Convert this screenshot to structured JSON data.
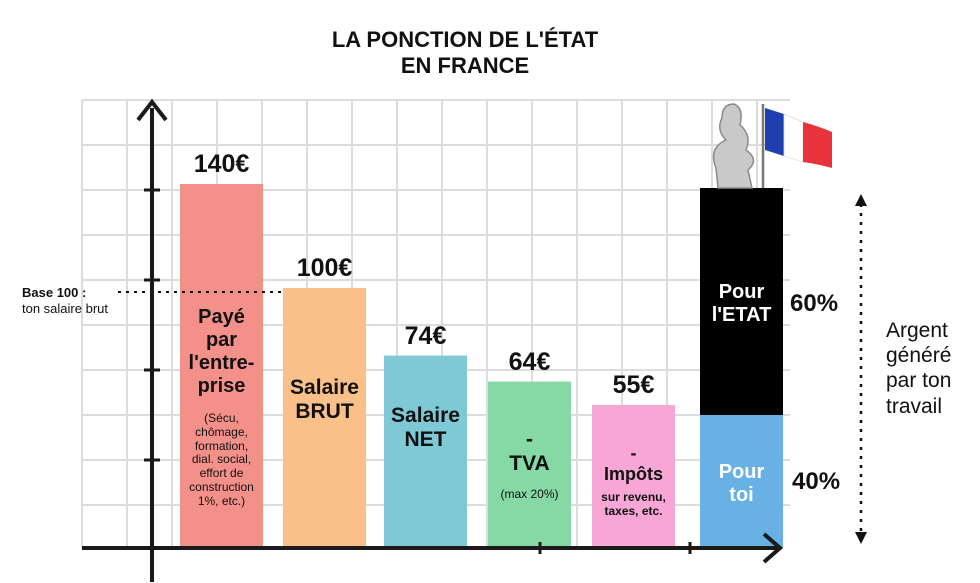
{
  "title_line1": "LA PONCTION DE L'ÉTAT",
  "title_line2": "EN FRANCE",
  "base_label_1": "Base 100 :",
  "base_label_2": "ton salaire brut",
  "bars": [
    {
      "value_label": "140€",
      "main_label": [
        "Payé",
        "par",
        "l'entre-",
        "prise"
      ],
      "sub_label": [
        "(Sécu,",
        "chômage,",
        "formation,",
        "dial. social,",
        "effort de",
        "construction",
        "1%, etc.)"
      ]
    },
    {
      "value_label": "100€",
      "main_label": [
        "Salaire",
        "BRUT"
      ],
      "sub_label": []
    },
    {
      "value_label": "74€",
      "main_label": [
        "Salaire",
        "NET"
      ],
      "sub_label": []
    },
    {
      "value_label": "64€",
      "main_label": [
        "-",
        "TVA"
      ],
      "sub_label": [
        "(max 20%)"
      ]
    },
    {
      "value_label": "55€",
      "main_label": [
        "-",
        "Impôts"
      ],
      "sub_label": [
        "sur revenu,",
        "taxes, etc."
      ]
    }
  ],
  "stack": {
    "top_label": [
      "Pour",
      "l'ETAT"
    ],
    "bottom_label": [
      "Pour",
      "toi"
    ],
    "top_pct": "60%",
    "bottom_pct": "40%"
  },
  "side_text": [
    "Argent",
    "généré",
    "par ton",
    "travail"
  ],
  "colors": {
    "bar_payé": "#f4908a",
    "bar_brut": "#f9c08a",
    "bar_net": "#7fc8d6",
    "bar_tva": "#86d8a4",
    "bar_impots": "#f7a6d6",
    "stack_etat": "#000000",
    "stack_toi": "#67b1e5",
    "grid": "#dcdcdc",
    "axis": "#1a1a1a"
  },
  "chart_data": {
    "type": "bar",
    "title": "LA PONCTION DE L'ÉTAT EN FRANCE",
    "categories": [
      "Payé par l'entreprise",
      "Salaire BRUT",
      "Salaire NET",
      "- TVA",
      "- Impôts"
    ],
    "values": [
      140,
      100,
      74,
      64,
      55
    ],
    "unit": "€",
    "ylim": [
      0,
      150
    ],
    "stacked_bar": {
      "segments": [
        {
          "name": "Pour l'ETAT",
          "value": 60
        },
        {
          "name": "Pour toi",
          "value": 40
        }
      ],
      "unit": "%"
    },
    "grid": true
  }
}
